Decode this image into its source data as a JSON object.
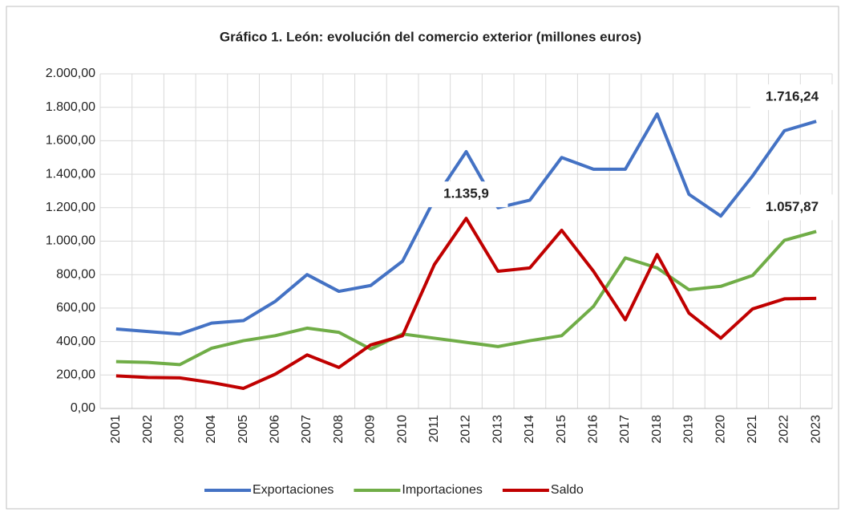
{
  "chart_data": {
    "type": "line",
    "title": "Gráfico 1. León: evolución del comercio exterior (millones euros)",
    "categories": [
      "2001",
      "2002",
      "2003",
      "2004",
      "2005",
      "2006",
      "2007",
      "2008",
      "2009",
      "2010",
      "2011",
      "2012",
      "2013",
      "2014",
      "2015",
      "2016",
      "2017",
      "2018",
      "2019",
      "2020",
      "2021",
      "2022",
      "2023"
    ],
    "series": [
      {
        "name": "Exportaciones",
        "color": "#4472c4",
        "values": [
          475,
          460,
          445,
          510,
          525,
          640,
          800,
          700,
          735,
          880,
          1250,
          1535,
          1200,
          1245,
          1500,
          1430,
          1430,
          1760,
          1280,
          1150,
          1390,
          1660,
          1716.24
        ],
        "value_labels": [
          null,
          null,
          null,
          null,
          null,
          null,
          null,
          null,
          null,
          null,
          null,
          null,
          null,
          null,
          null,
          null,
          null,
          null,
          null,
          null,
          null,
          null,
          "1.716,24"
        ]
      },
      {
        "name": "Importaciones",
        "color": "#70ad47",
        "values": [
          280,
          275,
          262,
          360,
          405,
          435,
          480,
          455,
          355,
          445,
          420,
          395,
          370,
          405,
          435,
          610,
          900,
          840,
          710,
          730,
          795,
          1005,
          1057.87
        ],
        "value_labels": [
          null,
          null,
          null,
          null,
          null,
          null,
          null,
          null,
          null,
          null,
          null,
          null,
          null,
          null,
          null,
          null,
          null,
          null,
          null,
          null,
          null,
          null,
          "1.057,87"
        ]
      },
      {
        "name": "Saldo",
        "color": "#c00000",
        "values": [
          195,
          185,
          183,
          155,
          120,
          205,
          320,
          245,
          380,
          435,
          860,
          1135.9,
          820,
          840,
          1065,
          820,
          530,
          920,
          570,
          420,
          595,
          655,
          658
        ],
        "value_labels": [
          null,
          null,
          null,
          null,
          null,
          null,
          null,
          null,
          null,
          null,
          null,
          "1.135,9",
          null,
          null,
          null,
          null,
          null,
          null,
          null,
          null,
          null,
          null,
          null
        ]
      }
    ],
    "ylim": [
      0,
      2000
    ],
    "yticks": [
      {
        "value": 0,
        "label": "0,00"
      },
      {
        "value": 200,
        "label": "200,00"
      },
      {
        "value": 400,
        "label": "400,00"
      },
      {
        "value": 600,
        "label": "600,00"
      },
      {
        "value": 800,
        "label": "800,00"
      },
      {
        "value": 1000,
        "label": "1.000,00"
      },
      {
        "value": 1200,
        "label": "1.200,00"
      },
      {
        "value": 1400,
        "label": "1.400,00"
      },
      {
        "value": 1600,
        "label": "1.600,00"
      },
      {
        "value": 1800,
        "label": "1.800,00"
      },
      {
        "value": 2000,
        "label": "2.000,00"
      }
    ],
    "grid": true,
    "legend": "bottom"
  }
}
